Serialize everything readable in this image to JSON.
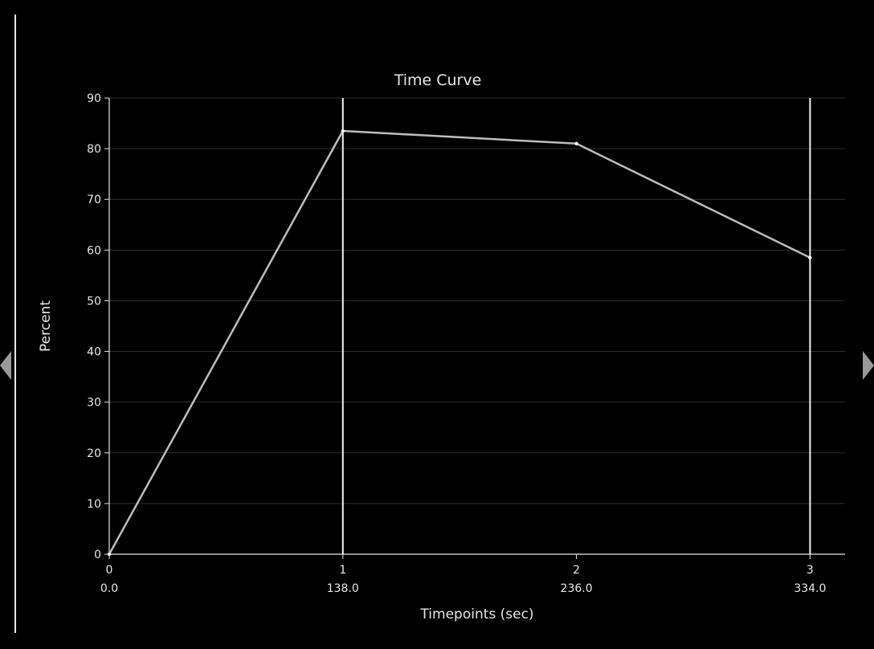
{
  "colors": {
    "background": "#000000",
    "foreground": "#e6e6e6",
    "grid": "#2e2e2e",
    "series": "#bdbdbd",
    "marker_line": "#f2f2f2",
    "nav_arrow": "#9a9a9a"
  },
  "navigation": {
    "prev_icon": "chevron-left-icon",
    "next_icon": "chevron-right-icon"
  },
  "chart_data": {
    "type": "line",
    "title": "Time Curve",
    "xlabel": "Timepoints (sec)",
    "ylabel": "Percent",
    "x": [
      0,
      1,
      2,
      3
    ],
    "x_tick_labels": [
      "0",
      "1",
      "2",
      "3"
    ],
    "x_tick_sublabels": [
      "0.0",
      "138.0",
      "236.0",
      "334.0"
    ],
    "y_ticks": [
      0,
      10,
      20,
      30,
      40,
      50,
      60,
      70,
      80,
      90
    ],
    "xlim": [
      0,
      3.15
    ],
    "ylim": [
      0,
      90
    ],
    "grid": true,
    "series": [
      {
        "values": [
          0,
          83.5,
          81,
          58.5
        ]
      }
    ],
    "vertical_markers": [
      1,
      3
    ]
  }
}
